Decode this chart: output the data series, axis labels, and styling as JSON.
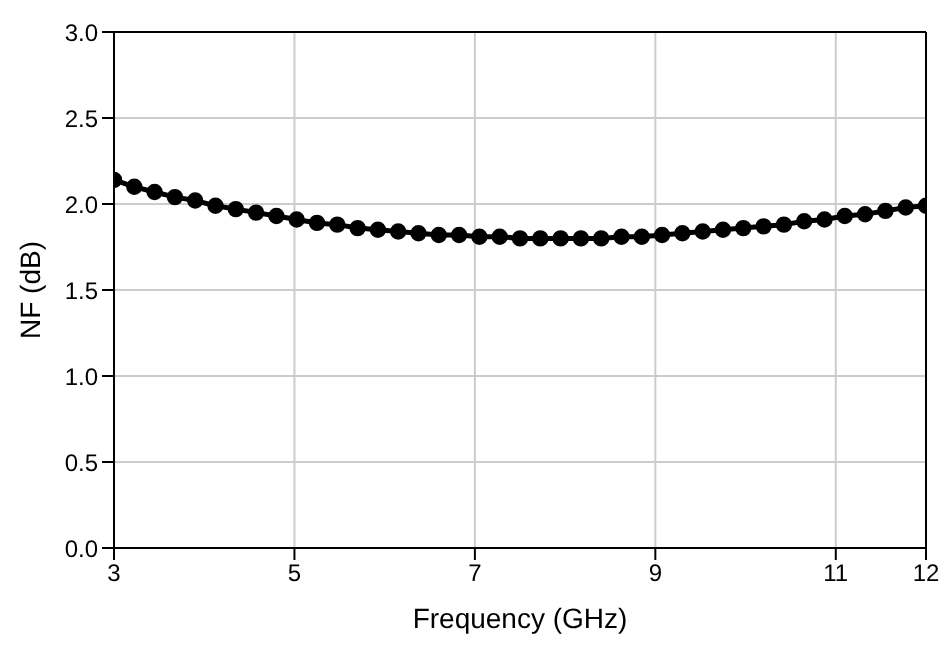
{
  "chart_data": {
    "type": "line",
    "xlabel": "Frequency (GHz)",
    "ylabel": "NF (dB)",
    "x": [
      3.0,
      3.225,
      3.45,
      3.675,
      3.9,
      4.125,
      4.35,
      4.575,
      4.8,
      5.025,
      5.25,
      5.475,
      5.7,
      5.925,
      6.15,
      6.375,
      6.6,
      6.825,
      7.05,
      7.275,
      7.5,
      7.725,
      7.95,
      8.175,
      8.4,
      8.625,
      8.85,
      9.075,
      9.3,
      9.525,
      9.75,
      9.975,
      10.2,
      10.425,
      10.65,
      10.875,
      11.1,
      11.325,
      11.55,
      11.775,
      12.0
    ],
    "series": [
      {
        "color": "#000000",
        "values": [
          2.14,
          2.1,
          2.07,
          2.04,
          2.02,
          1.99,
          1.97,
          1.95,
          1.93,
          1.91,
          1.89,
          1.88,
          1.86,
          1.85,
          1.84,
          1.83,
          1.82,
          1.82,
          1.81,
          1.81,
          1.8,
          1.8,
          1.8,
          1.8,
          1.8,
          1.81,
          1.81,
          1.82,
          1.83,
          1.84,
          1.85,
          1.86,
          1.87,
          1.88,
          1.9,
          1.91,
          1.93,
          1.94,
          1.96,
          1.98,
          1.99
        ]
      }
    ],
    "xlim": [
      3,
      12
    ],
    "xticks": [
      3,
      5,
      7,
      9,
      11,
      12
    ],
    "ylim": [
      0,
      3
    ],
    "yticks": [
      {
        "value": 0,
        "label": "0.0"
      },
      {
        "value": 0.5,
        "label": "0.5"
      },
      {
        "value": 1,
        "label": "1.0"
      },
      {
        "value": 1.5,
        "label": "1.5"
      },
      {
        "value": 2,
        "label": "2.0"
      },
      {
        "value": 2.5,
        "label": "2.5"
      },
      {
        "value": 3,
        "label": "3.0"
      }
    ],
    "grid": true,
    "marker": "circle",
    "line_style": "solid"
  }
}
